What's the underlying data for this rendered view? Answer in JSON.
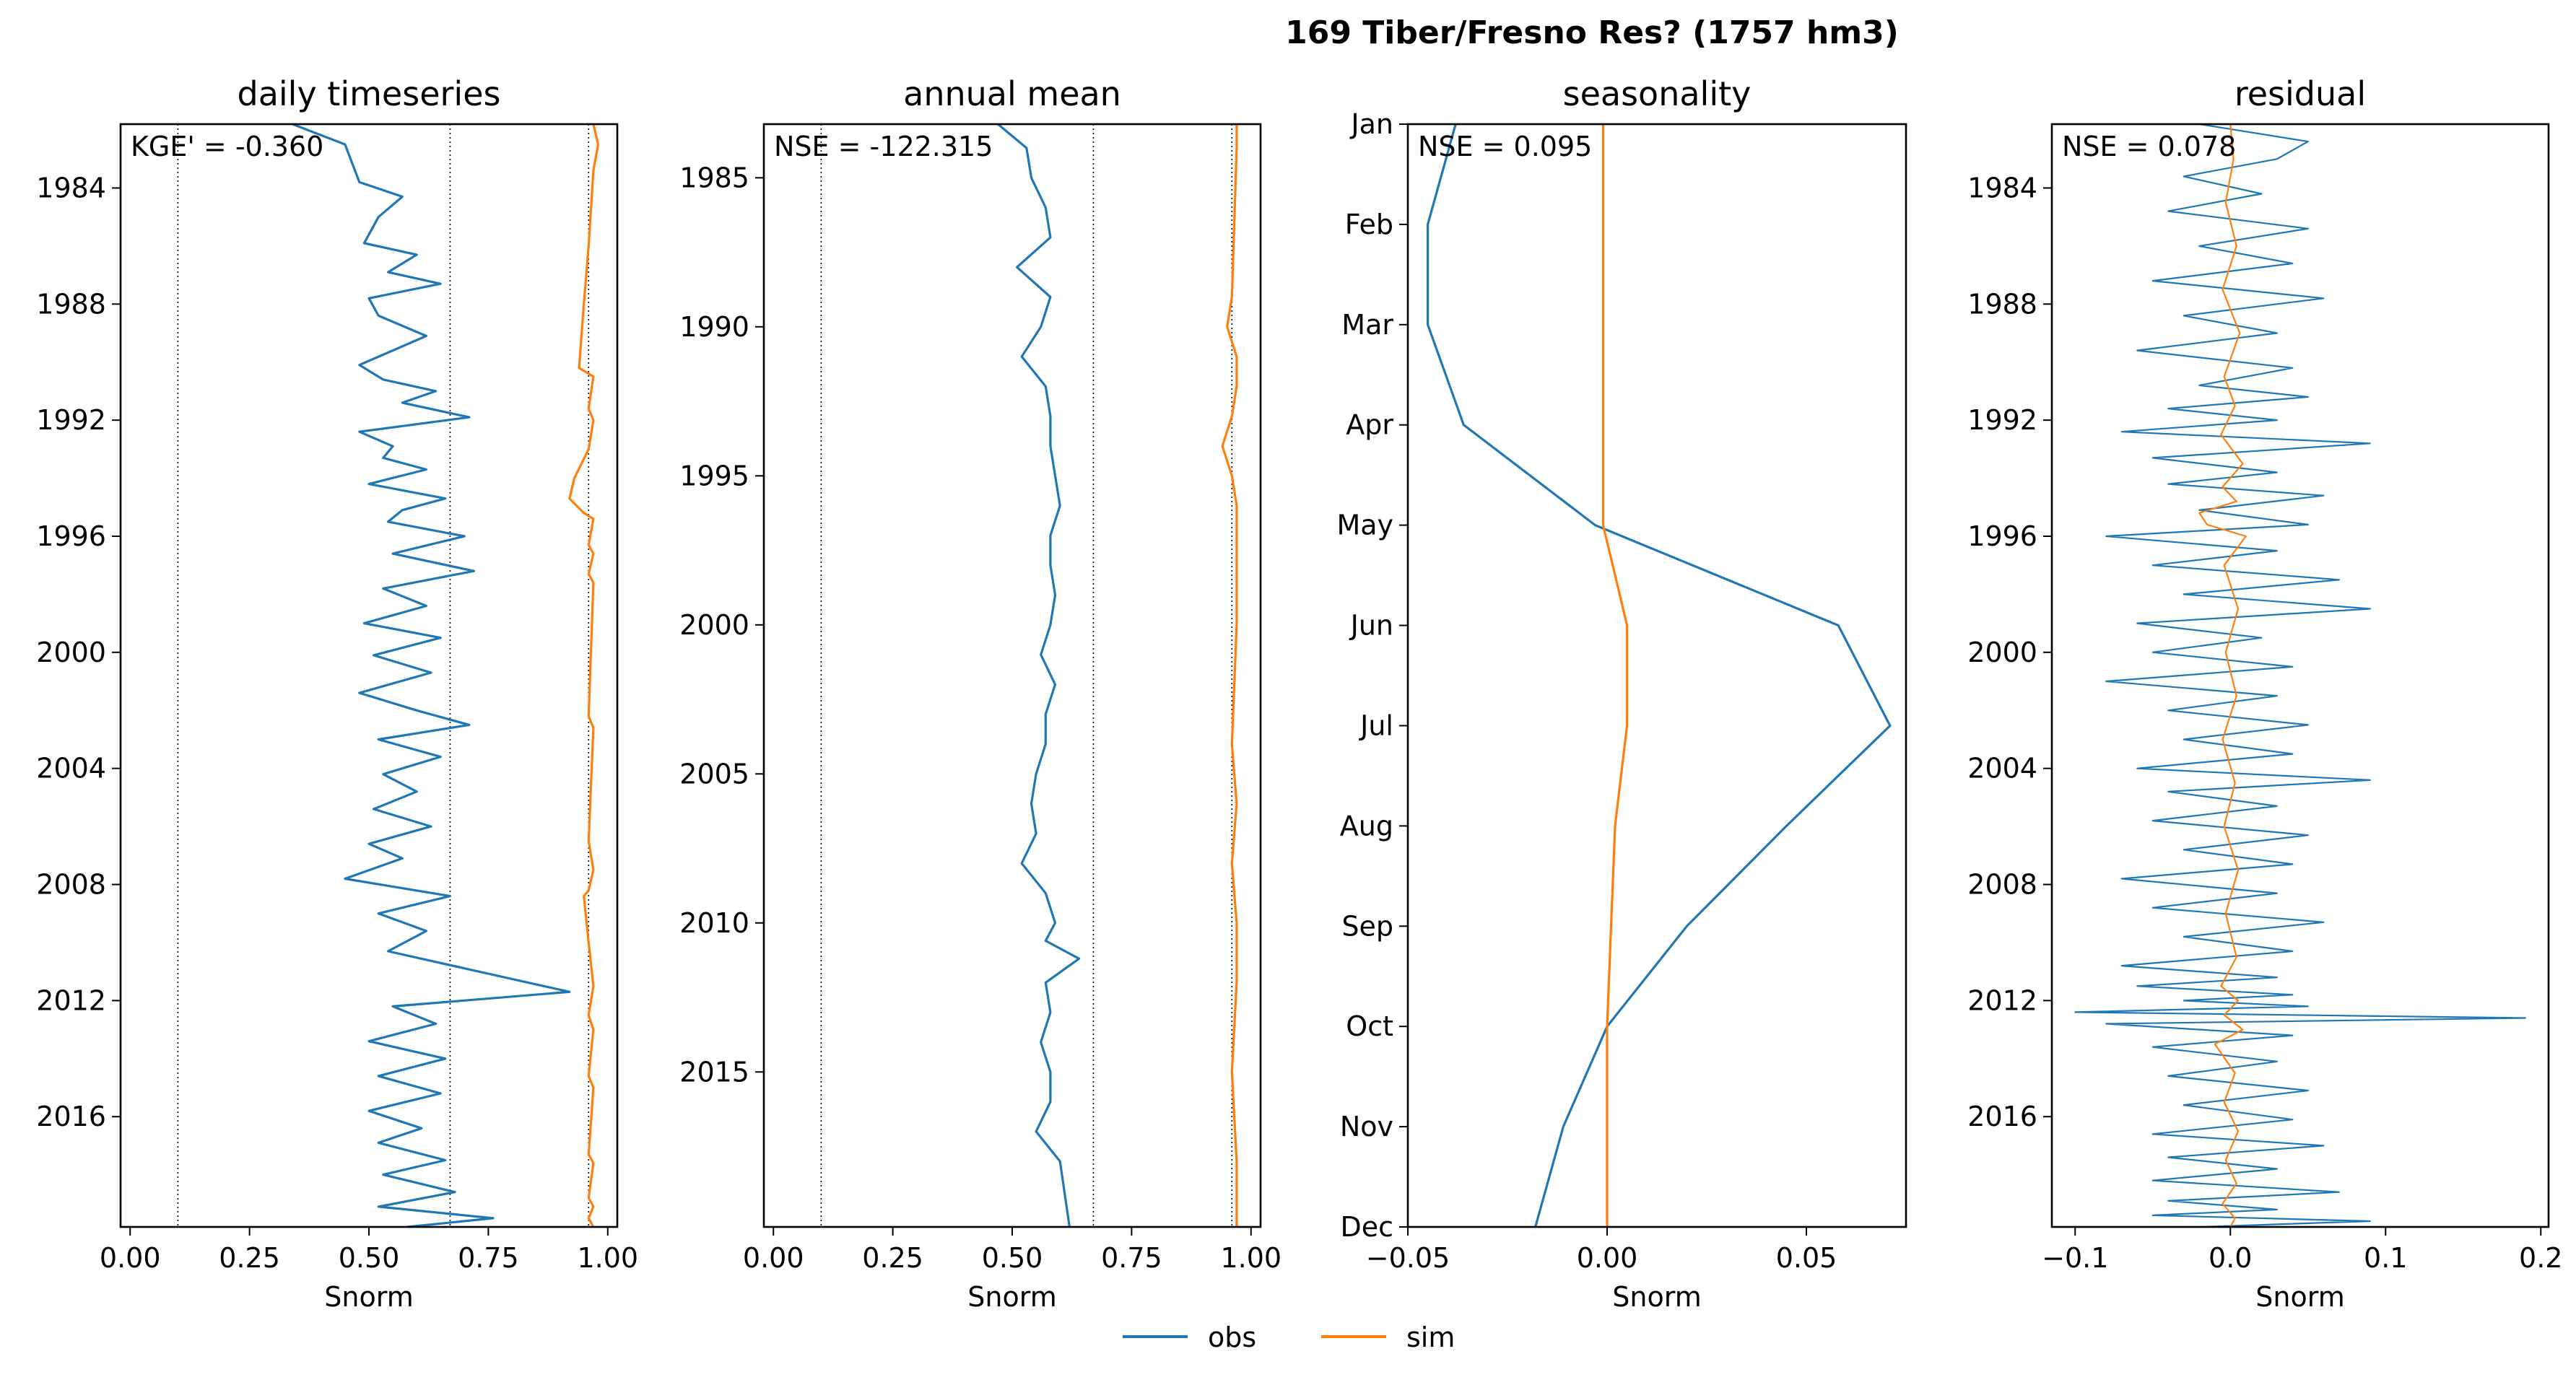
{
  "figure": {
    "suptitle": "169  Tiber/Fresno Res? (1757 hm3)",
    "legend": [
      {
        "label": "obs",
        "color": "#1f77b4"
      },
      {
        "label": "sim",
        "color": "#ff7f0e"
      }
    ]
  },
  "chart_data": [
    {
      "type": "line",
      "title": "daily timeseries",
      "xlabel": "Snorm",
      "ylabel": "",
      "metric": "KGE' = -0.360",
      "xlim": [
        -0.02,
        1.02
      ],
      "ylim": [
        1981.8,
        2019.8
      ],
      "y_reversed": true,
      "xticks": [
        0.0,
        0.25,
        0.5,
        0.75,
        1.0
      ],
      "xtick_labels": [
        "0.00",
        "0.25",
        "0.50",
        "0.75",
        "1.00"
      ],
      "yticks": [
        1984,
        1988,
        1992,
        1996,
        2000,
        2004,
        2008,
        2012,
        2016
      ],
      "ytick_labels": [
        "1984",
        "1988",
        "1992",
        "1996",
        "2000",
        "2004",
        "2008",
        "2012",
        "2016"
      ],
      "ref_lines_x": [
        0.1,
        0.67,
        0.96
      ],
      "series": [
        {
          "name": "obs",
          "color": "#1f77b4",
          "x": [
            0.34,
            0.45,
            0.48,
            0.57,
            0.52,
            0.49,
            0.6,
            0.54,
            0.65,
            0.5,
            0.52,
            0.62,
            0.55,
            0.48,
            0.53,
            0.64,
            0.57,
            0.71,
            0.48,
            0.55,
            0.53,
            0.62,
            0.5,
            0.66,
            0.57,
            0.54,
            0.7,
            0.55,
            0.72,
            0.53,
            0.62,
            0.49,
            0.65,
            0.51,
            0.63,
            0.48,
            0.6,
            0.71,
            0.52,
            0.65,
            0.53,
            0.6,
            0.51,
            0.63,
            0.5,
            0.57,
            0.45,
            0.67,
            0.52,
            0.62,
            0.54,
            0.92,
            0.55,
            0.64,
            0.5,
            0.66,
            0.52,
            0.65,
            0.5,
            0.61,
            0.52,
            0.66,
            0.53,
            0.68,
            0.52,
            0.76,
            0.58
          ],
          "y": [
            1981.8,
            1982.5,
            1983.8,
            1984.3,
            1985.0,
            1985.9,
            1986.3,
            1986.9,
            1987.3,
            1987.8,
            1988.4,
            1989.1,
            1989.6,
            1990.1,
            1990.6,
            1991.0,
            1991.4,
            1991.9,
            1992.4,
            1992.9,
            1993.3,
            1993.7,
            1994.2,
            1994.7,
            1995.1,
            1995.5,
            1996.0,
            1996.6,
            1997.2,
            1997.8,
            1998.4,
            1999.0,
            1999.5,
            2000.1,
            2000.7,
            2001.4,
            2002.0,
            2002.5,
            2003.0,
            2003.6,
            2004.2,
            2004.8,
            2005.4,
            2006.0,
            2006.6,
            2007.1,
            2007.8,
            2008.4,
            2009.0,
            2009.6,
            2010.3,
            2011.7,
            2012.2,
            2012.8,
            2013.4,
            2014.0,
            2014.6,
            2015.2,
            2015.8,
            2016.4,
            2016.9,
            2017.5,
            2018.0,
            2018.6,
            2019.1,
            2019.5,
            2019.8
          ]
        },
        {
          "name": "sim",
          "color": "#ff7f0e",
          "x": [
            0.97,
            0.98,
            0.97,
            0.96,
            0.95,
            0.94,
            0.97,
            0.96,
            0.97,
            0.96,
            0.93,
            0.92,
            0.95,
            0.97,
            0.96,
            0.97,
            0.96,
            0.97,
            0.96,
            0.97,
            0.96,
            0.97,
            0.96,
            0.95,
            0.96,
            0.97,
            0.96,
            0.97,
            0.96,
            0.97,
            0.96,
            0.97,
            0.96,
            0.97,
            0.96,
            0.97
          ],
          "y": [
            1981.8,
            1982.5,
            1983.4,
            1986.0,
            1988.0,
            1990.2,
            1990.5,
            1991.6,
            1992.0,
            1993.0,
            1994.0,
            1994.7,
            1995.2,
            1995.4,
            1996.3,
            1996.6,
            1997.3,
            1997.6,
            2002.2,
            2002.6,
            2006.5,
            2007.5,
            2008.2,
            2008.4,
            2010.0,
            2011.5,
            2012.5,
            2013.0,
            2014.6,
            2015.0,
            2017.3,
            2017.6,
            2018.8,
            2019.1,
            2019.5,
            2019.8
          ]
        }
      ]
    },
    {
      "type": "line",
      "title": "annual mean",
      "xlabel": "Snorm",
      "ylabel": "",
      "metric": "NSE = -122.315",
      "xlim": [
        -0.02,
        1.02
      ],
      "ylim": [
        1983.2,
        2020.2
      ],
      "y_reversed": true,
      "xticks": [
        0.0,
        0.25,
        0.5,
        0.75,
        1.0
      ],
      "xtick_labels": [
        "0.00",
        "0.25",
        "0.50",
        "0.75",
        "1.00"
      ],
      "yticks": [
        1985,
        1990,
        1995,
        2000,
        2005,
        2010,
        2015
      ],
      "ytick_labels": [
        "1985",
        "1990",
        "1995",
        "2000",
        "2005",
        "2010",
        "2015"
      ],
      "ref_lines_x": [
        0.1,
        0.67,
        0.96
      ],
      "series": [
        {
          "name": "obs",
          "color": "#1f77b4",
          "x": [
            0.47,
            0.53,
            0.54,
            0.57,
            0.58,
            0.51,
            0.58,
            0.56,
            0.52,
            0.57,
            0.58,
            0.58,
            0.59,
            0.6,
            0.58,
            0.58,
            0.59,
            0.58,
            0.56,
            0.59,
            0.57,
            0.57,
            0.55,
            0.54,
            0.55,
            0.52,
            0.57,
            0.59,
            0.57,
            0.64,
            0.57,
            0.58,
            0.56,
            0.58,
            0.58,
            0.55,
            0.6,
            0.62
          ],
          "y": [
            1983.2,
            1984.0,
            1985.0,
            1986.0,
            1987.0,
            1988.0,
            1989.0,
            1990.0,
            1991.0,
            1992.0,
            1993.0,
            1994.0,
            1995.0,
            1996.0,
            1997.0,
            1998.0,
            1999.0,
            2000.0,
            2001.0,
            2002.0,
            2003.0,
            2004.0,
            2005.0,
            2006.0,
            2007.0,
            2008.0,
            2009.0,
            2010.0,
            2010.6,
            2011.2,
            2012.0,
            2013.0,
            2014.0,
            2015.0,
            2016.0,
            2017.0,
            2018.0,
            2020.2
          ]
        },
        {
          "name": "sim",
          "color": "#ff7f0e",
          "x": [
            0.97,
            0.97,
            0.96,
            0.95,
            0.97,
            0.97,
            0.96,
            0.94,
            0.96,
            0.97,
            0.97,
            0.96,
            0.97,
            0.96,
            0.97,
            0.97,
            0.96,
            0.97,
            0.97
          ],
          "y": [
            1983.2,
            1984.0,
            1989.0,
            1990.0,
            1991.0,
            1992.0,
            1993.0,
            1994.0,
            1995.0,
            1996.0,
            2000.0,
            2004.0,
            2006.0,
            2008.0,
            2010.0,
            2012.0,
            2015.0,
            2018.0,
            2020.2
          ]
        }
      ]
    },
    {
      "type": "line",
      "title": "seasonality",
      "xlabel": "Snorm",
      "ylabel": "",
      "metric": "NSE = 0.095",
      "xlim": [
        -0.05,
        0.075
      ],
      "ylim": [
        1,
        12
      ],
      "y_reversed": true,
      "xticks": [
        -0.05,
        0.0,
        0.05
      ],
      "xtick_labels": [
        "−0.05",
        "0.00",
        "0.05"
      ],
      "yticks": [
        1,
        2,
        3,
        4,
        5,
        6,
        7,
        8,
        9,
        10,
        11,
        12
      ],
      "ytick_labels": [
        "Jan",
        "Feb",
        "Mar",
        "Apr",
        "May",
        "Jun",
        "Jul",
        "Aug",
        "Sep",
        "Oct",
        "Nov",
        "Dec"
      ],
      "series": [
        {
          "name": "obs",
          "color": "#1f77b4",
          "x": [
            -0.038,
            -0.045,
            -0.045,
            -0.036,
            -0.003,
            0.058,
            0.071,
            0.045,
            0.02,
            0.0,
            -0.011,
            -0.018
          ],
          "y": [
            1,
            2,
            3,
            4,
            5,
            6,
            7,
            8,
            9,
            10,
            11,
            12
          ]
        },
        {
          "name": "sim",
          "color": "#ff7f0e",
          "x": [
            -0.001,
            -0.001,
            -0.001,
            -0.001,
            -0.001,
            0.005,
            0.005,
            0.002,
            0.001,
            0.0,
            0.0,
            0.0
          ],
          "y": [
            1,
            2,
            3,
            4,
            5,
            6,
            7,
            8,
            9,
            10,
            11,
            12
          ]
        }
      ]
    },
    {
      "type": "line",
      "title": "residual",
      "xlabel": "Snorm",
      "ylabel": "",
      "metric": "NSE = 0.078",
      "xlim": [
        -0.115,
        0.205
      ],
      "ylim": [
        1981.8,
        2019.8
      ],
      "y_reversed": true,
      "xticks": [
        -0.1,
        0.0,
        0.1,
        0.2
      ],
      "xtick_labels": [
        "−0.1",
        "0.0",
        "0.1",
        "0.2"
      ],
      "yticks": [
        1984,
        1988,
        1992,
        1996,
        2000,
        2004,
        2008,
        2012,
        2016
      ],
      "ytick_labels": [
        "1984",
        "1988",
        "1992",
        "1996",
        "2000",
        "2004",
        "2008",
        "2012",
        "2016"
      ],
      "series": [
        {
          "name": "obs",
          "color": "#1f77b4",
          "x": [
            -0.02,
            0.05,
            0.03,
            -0.03,
            0.02,
            -0.04,
            0.05,
            -0.02,
            0.04,
            -0.05,
            0.06,
            -0.03,
            0.03,
            -0.06,
            0.04,
            -0.02,
            0.05,
            -0.04,
            0.03,
            -0.07,
            0.09,
            -0.05,
            0.03,
            -0.04,
            0.06,
            -0.02,
            0.05,
            -0.08,
            0.03,
            -0.05,
            0.07,
            -0.03,
            0.09,
            -0.06,
            0.02,
            -0.05,
            0.04,
            -0.08,
            0.03,
            -0.04,
            0.05,
            -0.03,
            0.04,
            -0.06,
            0.09,
            -0.04,
            0.03,
            -0.05,
            0.05,
            -0.03,
            0.04,
            -0.07,
            0.03,
            -0.05,
            0.06,
            -0.03,
            0.04,
            -0.07,
            0.03,
            -0.06,
            0.04,
            -0.03,
            0.05,
            -0.1,
            0.19,
            -0.08,
            0.04,
            -0.05,
            0.03,
            -0.04,
            0.05,
            -0.03,
            0.04,
            -0.05,
            0.06,
            -0.04,
            0.03,
            -0.05,
            0.07,
            -0.04,
            0.03,
            -0.05,
            0.09,
            -0.02
          ],
          "y": [
            1981.8,
            1982.4,
            1983.0,
            1983.6,
            1984.2,
            1984.8,
            1985.4,
            1986.0,
            1986.6,
            1987.2,
            1987.8,
            1988.4,
            1989.0,
            1989.6,
            1990.2,
            1990.8,
            1991.2,
            1991.6,
            1992.0,
            1992.4,
            1992.8,
            1993.3,
            1993.8,
            1994.2,
            1994.6,
            1995.1,
            1995.6,
            1996.0,
            1996.5,
            1997.0,
            1997.5,
            1998.0,
            1998.5,
            1999.0,
            1999.5,
            2000.0,
            2000.5,
            2001.0,
            2001.5,
            2002.0,
            2002.5,
            2003.0,
            2003.5,
            2004.0,
            2004.4,
            2004.8,
            2005.3,
            2005.8,
            2006.3,
            2006.8,
            2007.3,
            2007.8,
            2008.3,
            2008.8,
            2009.3,
            2009.8,
            2010.3,
            2010.8,
            2011.2,
            2011.5,
            2011.8,
            2012.0,
            2012.2,
            2012.4,
            2012.6,
            2012.8,
            2013.2,
            2013.6,
            2014.1,
            2014.6,
            2015.1,
            2015.6,
            2016.1,
            2016.6,
            2017.0,
            2017.4,
            2017.8,
            2018.2,
            2018.6,
            2018.9,
            2019.2,
            2019.4,
            2019.6,
            2019.8
          ]
        },
        {
          "name": "sim",
          "color": "#ff7f0e",
          "x": [
            0.0,
            0.002,
            -0.003,
            0.004,
            -0.005,
            0.006,
            -0.004,
            0.003,
            -0.006,
            0.008,
            -0.005,
            0.004,
            -0.02,
            -0.015,
            0.01,
            -0.004,
            0.005,
            -0.003,
            0.004,
            -0.005,
            0.003,
            -0.004,
            0.005,
            -0.003,
            0.004,
            -0.006,
            0.005,
            -0.004,
            0.008,
            -0.01,
            0.003,
            -0.004,
            0.005,
            -0.003,
            0.004,
            -0.005,
            0.003,
            0.0
          ],
          "y": [
            1981.8,
            1983.0,
            1984.5,
            1986.0,
            1987.5,
            1989.0,
            1990.5,
            1991.5,
            1992.5,
            1993.5,
            1994.3,
            1994.8,
            1995.2,
            1995.6,
            1996.0,
            1997.0,
            1998.5,
            2000.0,
            2001.5,
            2003.0,
            2004.5,
            2006.0,
            2007.5,
            2009.0,
            2010.5,
            2011.5,
            2012.0,
            2012.5,
            2013.0,
            2013.5,
            2014.5,
            2015.5,
            2016.5,
            2017.5,
            2018.3,
            2019.0,
            2019.5,
            2019.8
          ]
        }
      ]
    }
  ]
}
